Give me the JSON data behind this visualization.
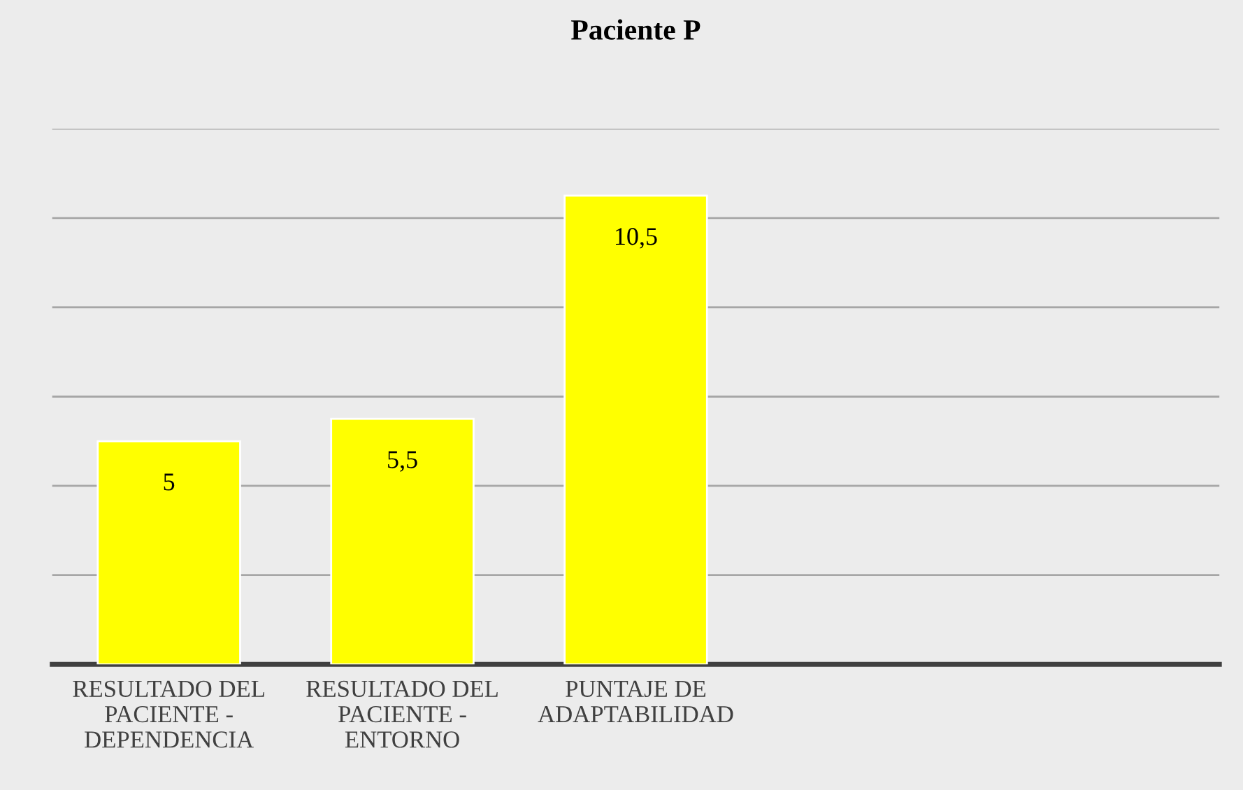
{
  "chart_data": {
    "type": "bar",
    "title": "Paciente P",
    "categories": [
      "RESULTADO DEL\nPACIENTE -\nDEPENDENCIA",
      "RESULTADO DEL\nPACIENTE -\nENTORNO",
      "PUNTAJE DE\nADAPTABILIDAD",
      null,
      null
    ],
    "values": [
      5,
      5.5,
      10.5,
      null,
      null
    ],
    "color": "#ffff00",
    "ylim": [
      0,
      12
    ],
    "yticks": [
      {
        "value": 0,
        "label": null
      },
      {
        "value": 2,
        "label": null
      },
      {
        "value": 4,
        "label": null
      },
      {
        "value": 6,
        "label": null
      },
      {
        "value": 8,
        "label": null
      },
      {
        "value": 10,
        "label": null
      },
      {
        "value": 12,
        "label": null
      }
    ],
    "tick_labels": "x",
    "grid": "y",
    "value_labels": [
      "5",
      "5,5",
      "10,5",
      null,
      null
    ],
    "legend": false
  }
}
